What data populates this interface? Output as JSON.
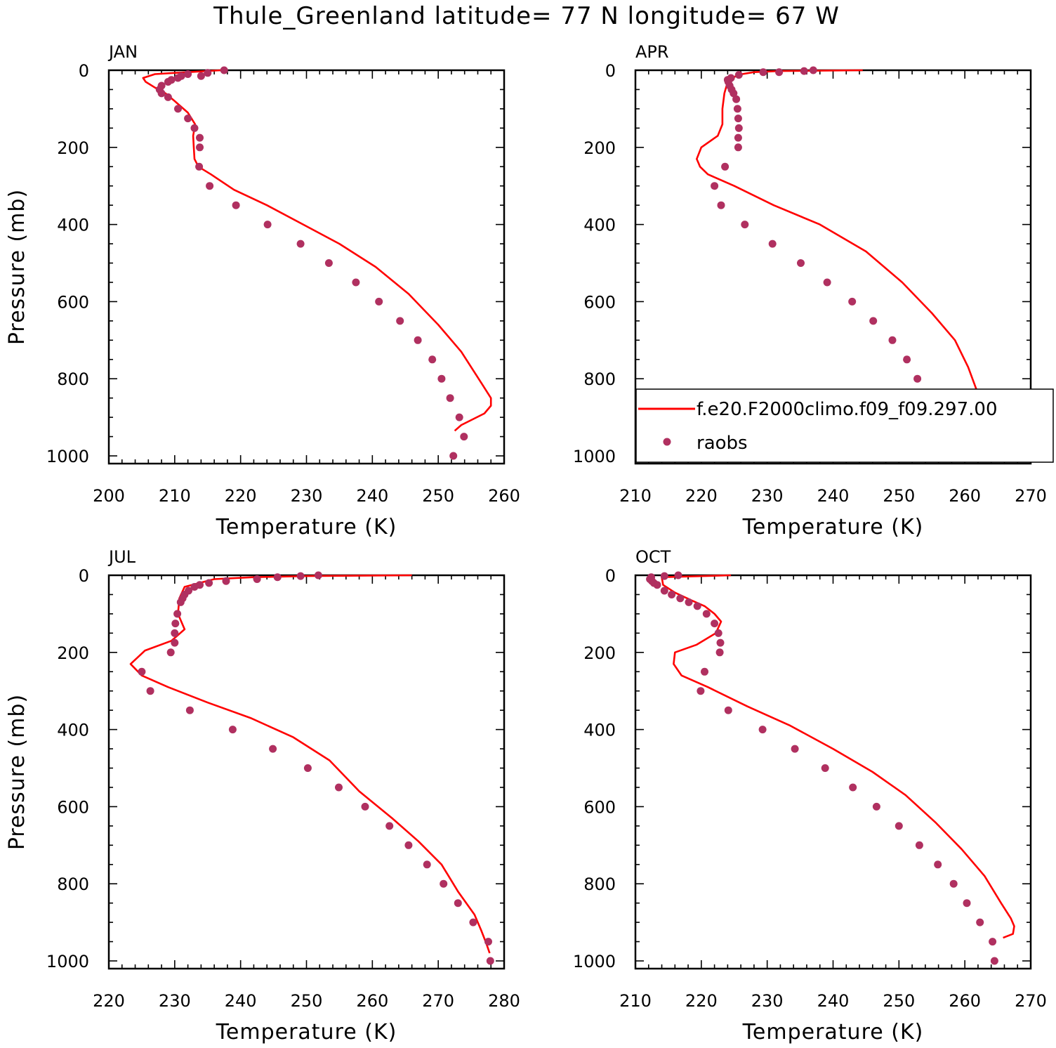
{
  "title": "Thule_Greenland  latitude= 77 N longitude= 67 W",
  "colors": {
    "model": "#ff0000",
    "obs": "#b03060"
  },
  "legend": {
    "model": "f.e20.F2000climo.f09_f09.297.00",
    "obs": "raobs"
  },
  "chart_data": [
    {
      "type": "line",
      "panel": "JAN",
      "xlabel": "Temperature (K)",
      "ylabel": "Pressure (mb)",
      "xlim": [
        200,
        260
      ],
      "ylim": [
        1020,
        0
      ],
      "xticks": [
        200,
        210,
        220,
        230,
        240,
        250,
        260
      ],
      "yticks": [
        0,
        200,
        400,
        600,
        800,
        1000
      ],
      "model": {
        "t": [
          217.0,
          207.0,
          205.2,
          205.6,
          207.0,
          208.6,
          210.0,
          212.0,
          213.1,
          212.8,
          212.9,
          213.0,
          213.6,
          215.5,
          219.0,
          224.0,
          229.5,
          235.0,
          240.5,
          245.5,
          250.0,
          253.5,
          256.5,
          258.0,
          258.0,
          257.0,
          253.5,
          252.5
        ],
        "p": [
          0,
          10,
          20,
          30,
          45,
          60,
          80,
          110,
          140,
          170,
          200,
          230,
          250,
          270,
          310,
          350,
          400,
          450,
          510,
          580,
          660,
          730,
          810,
          850,
          870,
          890,
          920,
          935
        ]
      },
      "obs": {
        "t": [
          217.5,
          215.0,
          214.0,
          212.0,
          211.0,
          210.5,
          209.5,
          209.0,
          208.0,
          207.7,
          208.0,
          209.0,
          210.5,
          212.0,
          213.0,
          213.8,
          213.8,
          213.7,
          215.3,
          219.3,
          224.1,
          229.1,
          233.4,
          237.5,
          241.0,
          244.2,
          246.9,
          249.1,
          250.5,
          251.8,
          253.2,
          253.9,
          252.3
        ],
        "p": [
          0,
          7,
          15,
          10,
          15,
          20,
          25,
          30,
          40,
          50,
          60,
          70,
          100,
          125,
          150,
          175,
          200,
          250,
          300,
          350,
          400,
          450,
          500,
          550,
          600,
          650,
          700,
          750,
          800,
          850,
          900,
          950,
          1000
        ]
      }
    },
    {
      "type": "line",
      "panel": "APR",
      "xlabel": "Temperature (K)",
      "ylabel": "",
      "xlim": [
        210,
        270
      ],
      "ylim": [
        1020,
        0
      ],
      "xticks": [
        210,
        220,
        230,
        240,
        250,
        260,
        270
      ],
      "yticks": [
        0,
        200,
        400,
        600,
        800,
        1000
      ],
      "model": {
        "t": [
          244.5,
          232.0,
          228.0,
          225.5,
          224.0,
          223.5,
          223.2,
          223.2,
          222.5,
          220.0,
          219.3,
          219.8,
          221.0,
          225.0,
          231.0,
          238.0,
          245.0,
          250.5,
          255.0,
          258.5,
          260.5,
          261.8,
          262.0,
          261.8,
          261.5,
          261.0,
          260.5
        ],
        "p": [
          0,
          2,
          5,
          12,
          30,
          60,
          100,
          140,
          170,
          200,
          230,
          250,
          270,
          300,
          350,
          400,
          470,
          550,
          630,
          700,
          770,
          830,
          860,
          880,
          900,
          920,
          935
        ]
      },
      "obs": {
        "t": [
          237.0,
          235.6,
          231.8,
          229.4,
          225.7,
          224.5,
          224.0,
          224.1,
          224.3,
          224.6,
          224.9,
          225.3,
          225.5,
          225.6,
          225.7,
          225.6,
          225.6,
          223.6,
          222.0,
          223.0,
          226.6,
          230.8,
          235.1,
          239.1,
          242.9,
          246.1,
          249.0,
          251.2,
          252.8,
          254.1,
          255.7,
          256.8,
          256.8
        ],
        "p": [
          0,
          2,
          5,
          5,
          12,
          20,
          25,
          30,
          40,
          50,
          60,
          75,
          100,
          125,
          150,
          175,
          200,
          250,
          300,
          350,
          400,
          450,
          500,
          550,
          600,
          650,
          700,
          750,
          800,
          850,
          900,
          950,
          1000
        ]
      }
    },
    {
      "type": "line",
      "panel": "JUL",
      "xlabel": "Temperature (K)",
      "ylabel": "Pressure (mb)",
      "xlim": [
        220,
        280
      ],
      "ylim": [
        1020,
        0
      ],
      "xticks": [
        220,
        230,
        240,
        250,
        260,
        270,
        280
      ],
      "yticks": [
        0,
        200,
        400,
        600,
        800,
        1000
      ],
      "model": {
        "t": [
          266.0,
          250.0,
          242.0,
          236.0,
          231.5,
          230.7,
          230.5,
          231.5,
          229.5,
          225.5,
          223.3,
          225.0,
          229.0,
          235.0,
          241.5,
          248.0,
          253.5,
          258.0,
          263.0,
          267.0,
          270.5,
          273.0,
          275.5,
          276.5,
          277.3,
          277.8
        ],
        "p": [
          0,
          2,
          5,
          10,
          30,
          60,
          100,
          140,
          170,
          195,
          230,
          260,
          290,
          330,
          370,
          420,
          480,
          560,
          630,
          690,
          750,
          820,
          880,
          920,
          955,
          980
        ]
      },
      "obs": {
        "t": [
          251.8,
          249.1,
          245.6,
          242.5,
          237.8,
          235.2,
          233.8,
          233.0,
          232.1,
          231.5,
          231.2,
          230.9,
          230.4,
          230.1,
          230.0,
          230.0,
          229.4,
          225.0,
          226.3,
          232.3,
          238.8,
          244.9,
          250.2,
          254.9,
          258.9,
          262.6,
          265.5,
          268.3,
          270.8,
          273.0,
          275.3,
          277.6,
          277.9
        ],
        "p": [
          0,
          2,
          5,
          10,
          15,
          20,
          25,
          30,
          40,
          50,
          60,
          70,
          100,
          125,
          150,
          175,
          200,
          250,
          300,
          350,
          400,
          450,
          500,
          550,
          600,
          650,
          700,
          750,
          800,
          850,
          900,
          950,
          1000
        ]
      }
    },
    {
      "type": "line",
      "panel": "OCT",
      "xlabel": "Temperature (K)",
      "ylabel": "",
      "xlim": [
        210,
        270
      ],
      "ylim": [
        1020,
        0
      ],
      "xticks": [
        210,
        220,
        230,
        240,
        250,
        260,
        270
      ],
      "yticks": [
        0,
        200,
        400,
        600,
        800,
        1000
      ],
      "model": {
        "t": [
          224.5,
          214.0,
          214.2,
          216.0,
          218.5,
          220.5,
          222.0,
          223.0,
          222.2,
          219.3,
          216.0,
          215.8,
          217.0,
          221.0,
          227.0,
          233.5,
          240.0,
          246.0,
          251.0,
          255.5,
          259.5,
          263.0,
          265.5,
          267.0,
          267.5,
          267.3,
          265.8
        ],
        "p": [
          0,
          5,
          25,
          45,
          65,
          80,
          100,
          120,
          150,
          180,
          200,
          230,
          260,
          290,
          340,
          390,
          450,
          510,
          570,
          640,
          710,
          780,
          850,
          890,
          910,
          930,
          940
        ]
      },
      "obs": {
        "t": [
          216.5,
          214.4,
          212.4,
          212.2,
          212.5,
          212.8,
          213.3,
          214.4,
          215.5,
          216.8,
          218.1,
          219.4,
          220.8,
          222.0,
          222.6,
          222.9,
          222.8,
          220.5,
          219.9,
          224.1,
          229.3,
          234.2,
          238.8,
          243.0,
          246.6,
          250.0,
          253.1,
          255.9,
          258.3,
          260.3,
          262.3,
          264.2,
          264.5
        ],
        "p": [
          0,
          2,
          5,
          10,
          15,
          20,
          25,
          40,
          50,
          60,
          70,
          80,
          100,
          125,
          150,
          175,
          200,
          250,
          300,
          350,
          400,
          450,
          500,
          550,
          600,
          650,
          700,
          750,
          800,
          850,
          900,
          950,
          1000
        ]
      }
    }
  ]
}
